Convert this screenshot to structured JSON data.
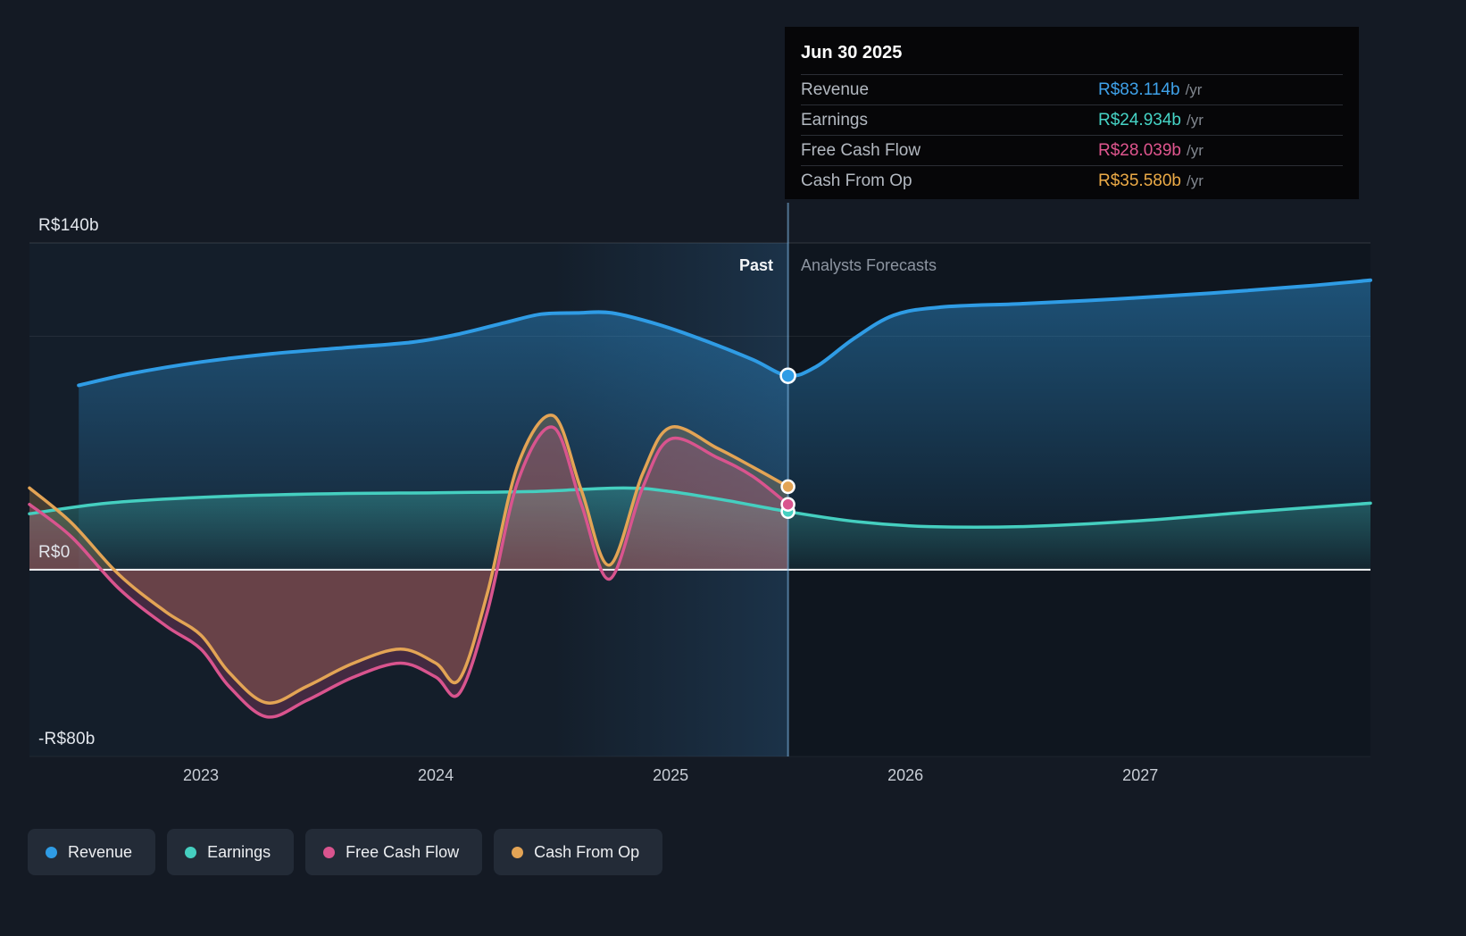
{
  "page": {
    "background": "#141a24"
  },
  "tooltip": {
    "title": "Jun 30 2025",
    "rows": [
      {
        "label": "Revenue",
        "value": "R$83.114b",
        "suffix": "/yr",
        "color": "#3fa2ea"
      },
      {
        "label": "Earnings",
        "value": "R$24.934b",
        "suffix": "/yr",
        "color": "#46d4c6"
      },
      {
        "label": "Free Cash Flow",
        "value": "R$28.039b",
        "suffix": "/yr",
        "color": "#e0568f"
      },
      {
        "label": "Cash From Op",
        "value": "R$35.580b",
        "suffix": "/yr",
        "color": "#ecab47"
      }
    ]
  },
  "annotations": {
    "past": "Past",
    "forecast": "Analysts Forecasts"
  },
  "legend": [
    {
      "label": "Revenue",
      "color": "#2f9ce5"
    },
    {
      "label": "Earnings",
      "color": "#45cfc0"
    },
    {
      "label": "Free Cash Flow",
      "color": "#d9548e"
    },
    {
      "label": "Cash From Op",
      "color": "#e3a455"
    }
  ],
  "chart_data": {
    "type": "area",
    "title": "Earnings and Revenue Growth",
    "currency_unit": "R$ billions per year",
    "x_domain": [
      2022.27,
      2027.98
    ],
    "y_domain": [
      -80,
      140
    ],
    "divider_x": 2025.5,
    "divider_date": "Jun 30 2025",
    "highlight_band": [
      2024.5,
      2025.5
    ],
    "grid": "partial",
    "legend_position": "bottom",
    "y_ticks": [
      {
        "value": 140,
        "label": "R$140b"
      },
      {
        "value": 0,
        "label": "R$0"
      },
      {
        "value": -80,
        "label": "-R$80b"
      }
    ],
    "y_gridlines_minor": [
      100
    ],
    "x_ticks": [
      {
        "value": 2023,
        "label": "2023"
      },
      {
        "value": 2024,
        "label": "2024"
      },
      {
        "value": 2025,
        "label": "2025"
      },
      {
        "value": 2026,
        "label": "2026"
      },
      {
        "value": 2027,
        "label": "2027"
      }
    ],
    "series": [
      {
        "name": "Revenue",
        "color": "#2f9ce5",
        "area_fill": "gradient-blue",
        "line_width": 4,
        "marker_value_at_divider": 83.114,
        "past": {
          "x": [
            2022.48,
            2022.7,
            2023.0,
            2023.3,
            2023.6,
            2023.9,
            2024.1,
            2024.3,
            2024.45,
            2024.6,
            2024.75,
            2024.95,
            2025.15,
            2025.35,
            2025.5
          ],
          "y": [
            79,
            84,
            89,
            92.5,
            95,
            97.5,
            101,
            106,
            109.5,
            110,
            110,
            105,
            98,
            90,
            83.1
          ]
        },
        "forecast": {
          "x": [
            2025.5,
            2025.62,
            2025.78,
            2025.95,
            2026.15,
            2026.5,
            2026.9,
            2027.3,
            2027.7,
            2027.98
          ],
          "y": [
            83.1,
            87,
            99,
            109,
            112.5,
            114,
            116,
            118.5,
            121.5,
            124
          ]
        }
      },
      {
        "name": "Earnings",
        "color": "#45cfc0",
        "area_fill": "gradient-teal",
        "line_width": 3.5,
        "marker_value_at_divider": 24.934,
        "past": {
          "x": [
            2022.27,
            2022.6,
            2023.0,
            2023.5,
            2024.0,
            2024.4,
            2024.8,
            2025.0,
            2025.25,
            2025.5
          ],
          "y": [
            24,
            28.5,
            31,
            32.5,
            33,
            33.5,
            35,
            33.5,
            29.5,
            24.9
          ]
        },
        "forecast": {
          "x": [
            2025.5,
            2025.8,
            2026.1,
            2026.5,
            2027.0,
            2027.5,
            2027.98
          ],
          "y": [
            24.9,
            20.5,
            18.5,
            18.5,
            21,
            25,
            28.5
          ]
        }
      },
      {
        "name": "Cash From Op",
        "color": "#e3a455",
        "area_fill": "flat",
        "line_width": 3.5,
        "marker_value_at_divider": 35.58,
        "past": {
          "x": [
            2022.27,
            2022.45,
            2022.65,
            2022.85,
            2023.0,
            2023.12,
            2023.28,
            2023.45,
            2023.65,
            2023.85,
            2024.0,
            2024.1,
            2024.22,
            2024.35,
            2024.5,
            2024.62,
            2024.74,
            2024.88,
            2025.0,
            2025.2,
            2025.35,
            2025.5
          ],
          "y": [
            35,
            20,
            -2,
            -18,
            -28,
            -44,
            -57,
            -50,
            -40,
            -34,
            -40,
            -47,
            -10,
            45,
            66,
            34,
            2,
            41,
            61,
            52,
            44,
            35.6
          ]
        },
        "forecast": null
      },
      {
        "name": "Free Cash Flow",
        "color": "#d9548e",
        "area_fill": "flat",
        "line_width": 3.5,
        "marker_value_at_divider": 28.039,
        "past": {
          "x": [
            2022.27,
            2022.45,
            2022.65,
            2022.85,
            2023.0,
            2023.12,
            2023.28,
            2023.45,
            2023.65,
            2023.85,
            2024.0,
            2024.1,
            2024.22,
            2024.35,
            2024.5,
            2024.62,
            2024.74,
            2024.88,
            2025.0,
            2025.2,
            2025.35,
            2025.5
          ],
          "y": [
            28,
            14,
            -8,
            -24,
            -34,
            -50,
            -63,
            -56,
            -46,
            -40,
            -46,
            -53,
            -18,
            38,
            61,
            28,
            -4,
            35,
            56,
            48,
            40,
            28
          ]
        },
        "forecast": null
      }
    ]
  }
}
